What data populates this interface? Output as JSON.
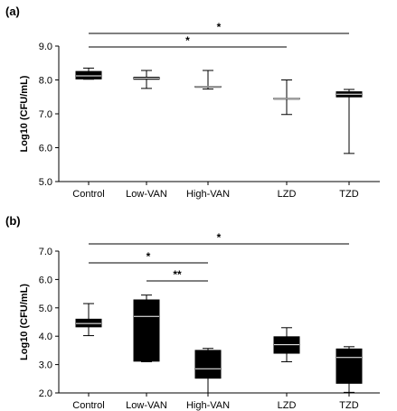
{
  "chart_data": [
    {
      "type": "box",
      "panel_label": "(a)",
      "ylabel": "Log10 (CFU/mL)",
      "ylim": [
        5.0,
        9.0
      ],
      "yticks": [
        "5.0",
        "6.0",
        "7.0",
        "8.0",
        "9.0"
      ],
      "categories": [
        "Control",
        "Low-VAN",
        "High-VAN",
        "LZD",
        "TZD"
      ],
      "boxes": [
        {
          "min": 8.02,
          "q1": 8.03,
          "median": 8.12,
          "q3": 8.25,
          "max": 8.35
        },
        {
          "min": 7.75,
          "q1": 8.02,
          "median": 8.05,
          "q3": 8.08,
          "max": 8.28
        },
        {
          "min": 7.73,
          "q1": 7.79,
          "median": 7.8,
          "q3": 7.81,
          "max": 8.28
        },
        {
          "min": 6.98,
          "q1": 7.44,
          "median": 7.45,
          "q3": 7.46,
          "max": 8.0
        },
        {
          "min": 5.83,
          "q1": 7.5,
          "median": 7.58,
          "q3": 7.65,
          "max": 7.72
        }
      ],
      "significance": [
        {
          "from": "Control",
          "to": "TZD",
          "label": "*"
        },
        {
          "from": "Control",
          "to": "LZD",
          "label": "*"
        }
      ]
    },
    {
      "type": "box",
      "panel_label": "(b)",
      "ylabel": "Log10 (CFU/mL)",
      "ylim": [
        2.0,
        7.0
      ],
      "yticks": [
        "2.0",
        "3.0",
        "4.0",
        "5.0",
        "6.0",
        "7.0"
      ],
      "categories": [
        "Control",
        "Low-VAN",
        "High-VAN",
        "LZD",
        "TZD"
      ],
      "boxes": [
        {
          "min": 4.02,
          "q1": 4.33,
          "median": 4.45,
          "q3": 4.6,
          "max": 5.15
        },
        {
          "min": 3.1,
          "q1": 3.12,
          "median": 4.7,
          "q3": 5.28,
          "max": 5.45
        },
        {
          "min": 2.0,
          "q1": 2.52,
          "median": 2.85,
          "q3": 3.5,
          "max": 3.57
        },
        {
          "min": 3.1,
          "q1": 3.4,
          "median": 3.7,
          "q3": 3.98,
          "max": 4.3
        },
        {
          "min": 2.02,
          "q1": 2.34,
          "median": 3.25,
          "q3": 3.55,
          "max": 3.63
        }
      ],
      "significance": [
        {
          "from": "Control",
          "to": "TZD",
          "label": "*"
        },
        {
          "from": "Control",
          "to": "High-VAN",
          "label": "*"
        },
        {
          "from": "Low-VAN",
          "to": "High-VAN",
          "label": "**"
        }
      ]
    }
  ]
}
